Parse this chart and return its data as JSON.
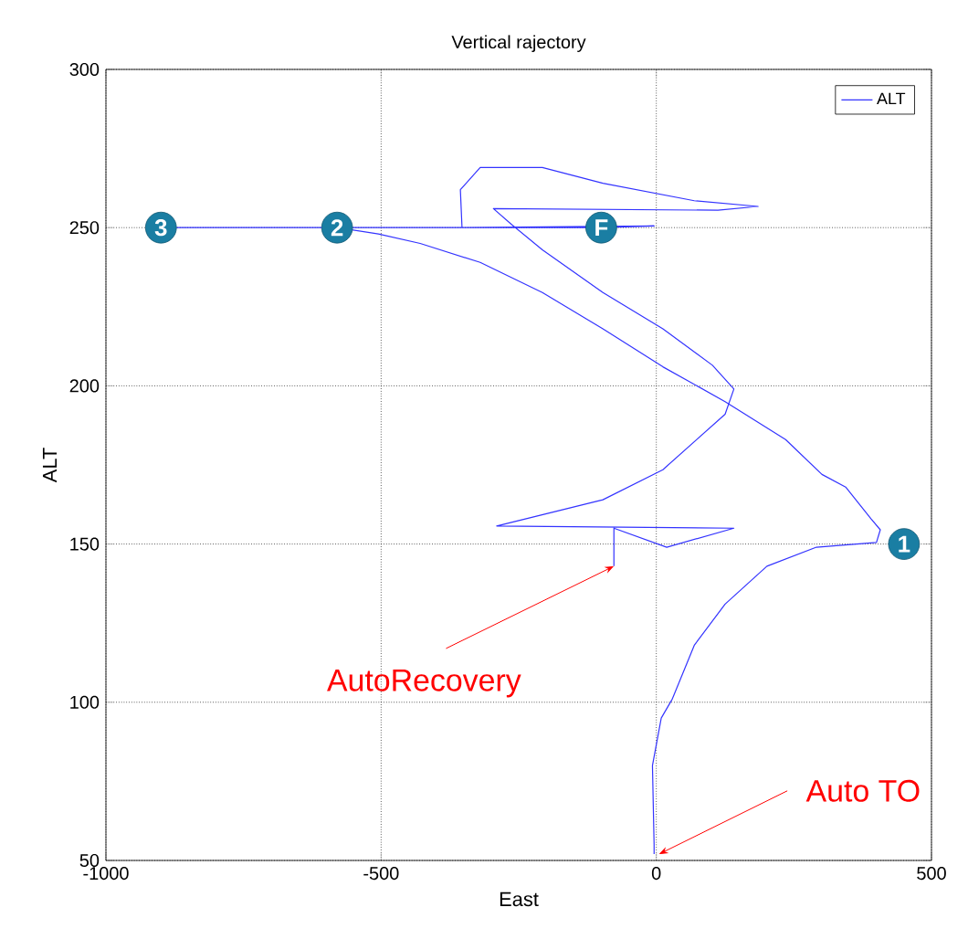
{
  "chart_data": {
    "type": "line",
    "title": "Vertical rajectory",
    "xlabel": "East",
    "ylabel": "ALT",
    "xlim": [
      -1000,
      500
    ],
    "xticks": [
      -1000,
      -500,
      0,
      500
    ],
    "ylim": [
      50,
      300
    ],
    "yticks": [
      50,
      100,
      150,
      200,
      250,
      300
    ],
    "grid": true,
    "legend": "top right",
    "marker": "none",
    "line_style": "solid",
    "series": [
      {
        "name": "ALT",
        "color": "#3333ff",
        "x": [
          -4,
          -4,
          -7,
          9,
          29,
          69,
          125,
          201,
          291,
          400,
          407,
          390,
          344,
          301,
          235,
          125,
          12,
          -97,
          -207,
          -320,
          -429,
          -505,
          -580,
          -700,
          -900,
          -700,
          -500,
          -353,
          -100,
          -4,
          -353,
          -356,
          -320,
          -207,
          -97,
          69,
          185,
          112,
          -296,
          -263,
          -207,
          -97,
          12,
          102,
          141,
          125,
          12,
          -97,
          -290,
          141,
          19,
          -77,
          -77
        ],
        "values": [
          52,
          55,
          80,
          95,
          101,
          118,
          131,
          143,
          149,
          150.5,
          154.5,
          158,
          168,
          172,
          183,
          195,
          206,
          218,
          229.5,
          239,
          245,
          248,
          250,
          250,
          250,
          250,
          250,
          250,
          250,
          250.5,
          250,
          262,
          269,
          269,
          264,
          258.5,
          256.7,
          255.5,
          256,
          251,
          243,
          229.5,
          218,
          206.5,
          199,
          191,
          173.5,
          164,
          155.7,
          155,
          149,
          155,
          143
        ]
      }
    ],
    "annotations": [
      {
        "text": "1",
        "x": 450,
        "y": 150
      },
      {
        "text": "2",
        "x": -580,
        "y": 250
      },
      {
        "text": "3",
        "x": -900,
        "y": 250
      },
      {
        "text": "F",
        "x": -100,
        "y": 250
      },
      {
        "text": "AutoRecovery",
        "x": -77,
        "y": 143
      },
      {
        "text": "Auto TO",
        "x": 0,
        "y": 52
      }
    ]
  }
}
